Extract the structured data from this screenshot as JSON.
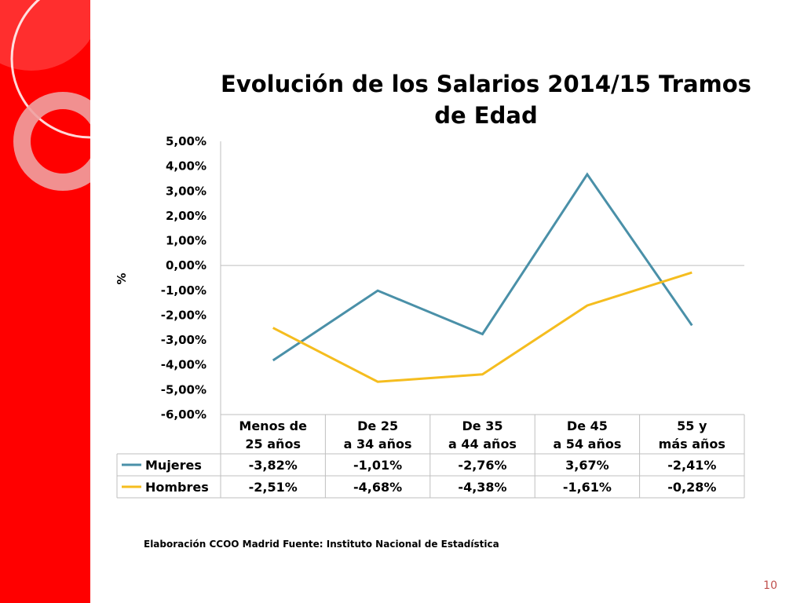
{
  "colors": {
    "sidebar": "#ff0000",
    "mujeres": "#4a90a8",
    "hombres": "#f5bd1f",
    "grid": "#bfbfbf"
  },
  "chart_data": {
    "type": "line",
    "title_line1": "Evolución de los Salarios 2014/15  Tramos",
    "title_line2": "de Edad",
    "ylabel": "%",
    "ylim": [
      -6,
      5
    ],
    "yticks": [
      5,
      4,
      3,
      2,
      1,
      0,
      -1,
      -2,
      -3,
      -4,
      -5,
      -6
    ],
    "ytick_labels": [
      "5,00%",
      "4,00%",
      "3,00%",
      "2,00%",
      "1,00%",
      "0,00%",
      "-1,00%",
      "-2,00%",
      "-3,00%",
      "-4,00%",
      "-5,00%",
      "-6,00%"
    ],
    "categories": [
      [
        "Menos de",
        "25 años"
      ],
      [
        "De 25",
        "a 34 años"
      ],
      [
        "De 35",
        "a 44 años"
      ],
      [
        "De 45",
        "a 54 años"
      ],
      [
        "55 y",
        "más años"
      ]
    ],
    "series": [
      {
        "name": "Mujeres",
        "color": "#4a90a8",
        "values": [
          -3.82,
          -1.01,
          -2.76,
          3.67,
          -2.41
        ],
        "labels": [
          "-3,82%",
          "-1,01%",
          "-2,76%",
          "3,67%",
          "-2,41%"
        ]
      },
      {
        "name": "Hombres",
        "color": "#f5bd1f",
        "values": [
          -2.51,
          -4.68,
          -4.38,
          -1.61,
          -0.28
        ],
        "labels": [
          "-2,51%",
          "-4,68%",
          "-4,38%",
          "-1,61%",
          "-0,28%"
        ]
      }
    ],
    "legend": "data table",
    "grid": false
  },
  "source": "Elaboración CCOO Madrid Fuente: Instituto Nacional de Estadística",
  "page_number": "10"
}
